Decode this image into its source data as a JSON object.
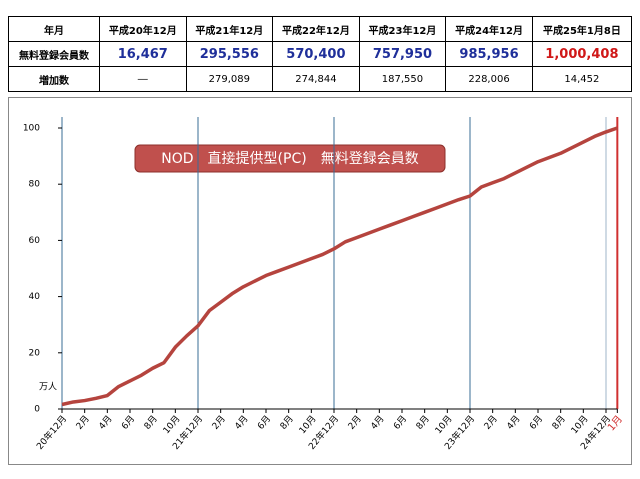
{
  "table": {
    "header": [
      "年月",
      "平成20年12月",
      "平成21年12月",
      "平成22年12月",
      "平成23年12月",
      "平成24年12月",
      "平成25年1月8日"
    ],
    "rows": [
      [
        "無料登録会員数",
        "16,467",
        "295,556",
        "570,400",
        "757,950",
        "985,956",
        "1,000,408"
      ],
      [
        "増加数",
        "―",
        "279,089",
        "274,844",
        "187,550",
        "228,006",
        "14,452"
      ]
    ]
  },
  "chart_data": {
    "type": "line",
    "title": "NOD　直接提供型(PC)　無料登録会員数",
    "y_unit": "万人",
    "color": "#b5443e",
    "categories": [
      "20年12月",
      null,
      "2月",
      null,
      "4月",
      null,
      "6月",
      null,
      "8月",
      null,
      "10月",
      null,
      "21年12月",
      null,
      "2月",
      null,
      "4月",
      null,
      "6月",
      null,
      "8月",
      null,
      "10月",
      null,
      "22年12月",
      null,
      "2月",
      null,
      "4月",
      null,
      "6月",
      null,
      "8月",
      null,
      "10月",
      null,
      "23年12月",
      null,
      "2月",
      null,
      "4月",
      null,
      "6月",
      null,
      "8月",
      null,
      "10月",
      null,
      "24年12月",
      "1月"
    ],
    "values": [
      1.6,
      2.5,
      3.0,
      3.8,
      4.8,
      8.0,
      10,
      12,
      14.5,
      16.5,
      22,
      26,
      29.6,
      35,
      38,
      41,
      43.5,
      45.5,
      47.5,
      49,
      50.5,
      52,
      53.5,
      55,
      57.0,
      59.5,
      61,
      62.5,
      64,
      65.5,
      67,
      68.5,
      70,
      71.5,
      73,
      74.5,
      75.8,
      79,
      80.5,
      82,
      84,
      86,
      88,
      89.5,
      91,
      93,
      95,
      97,
      98.6,
      100.0
    ],
    "ylim": [
      0,
      100
    ],
    "yticks": [
      0,
      20,
      40,
      60,
      80,
      100
    ]
  }
}
